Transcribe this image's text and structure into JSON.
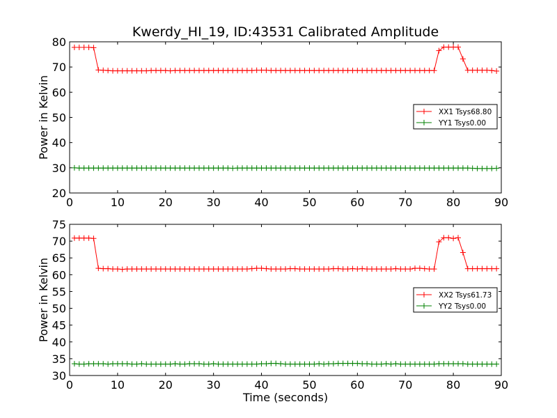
{
  "figure": {
    "title": "Kwerdy_HI_19, ID:43531 Calibrated Amplitude"
  },
  "chart_data": [
    {
      "type": "line",
      "title": "Kwerdy_HI_19, ID:43531 Calibrated Amplitude",
      "xlabel": "",
      "ylabel": "Power in Kelvin",
      "xlim": [
        0,
        90
      ],
      "ylim": [
        20,
        80
      ],
      "xticks": [
        "0",
        "10",
        "20",
        "30",
        "40",
        "50",
        "60",
        "70",
        "80",
        "90"
      ],
      "yticks": [
        "20",
        "30",
        "40",
        "50",
        "60",
        "70",
        "80"
      ],
      "grid": false,
      "legend_position": "center-right",
      "series": [
        {
          "name": "XX1 Tsys68.80",
          "color": "#ff0000",
          "marker": "plus",
          "x": [
            1,
            2,
            3,
            4,
            5,
            6,
            7,
            8,
            9,
            10,
            11,
            12,
            13,
            14,
            15,
            16,
            17,
            18,
            19,
            20,
            21,
            22,
            23,
            24,
            25,
            26,
            27,
            28,
            29,
            30,
            31,
            32,
            33,
            34,
            35,
            36,
            37,
            38,
            39,
            40,
            41,
            42,
            43,
            44,
            45,
            46,
            47,
            48,
            49,
            50,
            51,
            52,
            53,
            54,
            55,
            56,
            57,
            58,
            59,
            60,
            61,
            62,
            63,
            64,
            65,
            66,
            67,
            68,
            69,
            70,
            71,
            72,
            73,
            74,
            75,
            76,
            77,
            78,
            79,
            80,
            81,
            82,
            83,
            84,
            85,
            86,
            87,
            88,
            89
          ],
          "y": [
            77.8,
            77.8,
            77.8,
            77.8,
            77.7,
            68.8,
            68.7,
            68.6,
            68.5,
            68.5,
            68.5,
            68.5,
            68.5,
            68.5,
            68.5,
            68.5,
            68.6,
            68.6,
            68.6,
            68.6,
            68.5,
            68.6,
            68.6,
            68.6,
            68.6,
            68.6,
            68.6,
            68.6,
            68.6,
            68.6,
            68.6,
            68.6,
            68.6,
            68.6,
            68.6,
            68.6,
            68.6,
            68.6,
            68.7,
            68.7,
            68.7,
            68.6,
            68.6,
            68.6,
            68.6,
            68.6,
            68.6,
            68.6,
            68.6,
            68.6,
            68.6,
            68.6,
            68.6,
            68.6,
            68.6,
            68.6,
            68.6,
            68.6,
            68.6,
            68.6,
            68.6,
            68.6,
            68.6,
            68.6,
            68.6,
            68.6,
            68.6,
            68.6,
            68.6,
            68.6,
            68.6,
            68.6,
            68.6,
            68.6,
            68.6,
            68.6,
            76.5,
            77.9,
            77.9,
            77.9,
            77.9,
            73.2,
            68.7,
            68.7,
            68.7,
            68.7,
            68.7,
            68.6,
            68.4
          ]
        },
        {
          "name": "YY1 Tsys0.00",
          "color": "#008000",
          "marker": "plus",
          "x": [
            1,
            2,
            3,
            4,
            5,
            6,
            7,
            8,
            9,
            10,
            11,
            12,
            13,
            14,
            15,
            16,
            17,
            18,
            19,
            20,
            21,
            22,
            23,
            24,
            25,
            26,
            27,
            28,
            29,
            30,
            31,
            32,
            33,
            34,
            35,
            36,
            37,
            38,
            39,
            40,
            41,
            42,
            43,
            44,
            45,
            46,
            47,
            48,
            49,
            50,
            51,
            52,
            53,
            54,
            55,
            56,
            57,
            58,
            59,
            60,
            61,
            62,
            63,
            64,
            65,
            66,
            67,
            68,
            69,
            70,
            71,
            72,
            73,
            74,
            75,
            76,
            77,
            78,
            79,
            80,
            81,
            82,
            83,
            84,
            85,
            86,
            87,
            88,
            89
          ],
          "y": [
            30.0,
            29.9,
            29.9,
            29.9,
            29.9,
            29.9,
            29.9,
            29.9,
            29.9,
            29.9,
            29.9,
            29.9,
            29.9,
            29.9,
            29.9,
            29.9,
            29.9,
            29.9,
            29.9,
            29.9,
            29.9,
            29.9,
            29.9,
            29.9,
            29.9,
            29.9,
            29.9,
            29.9,
            29.9,
            29.9,
            29.9,
            29.9,
            29.9,
            29.8,
            29.9,
            29.9,
            29.9,
            29.9,
            29.9,
            29.9,
            29.9,
            29.9,
            29.9,
            29.9,
            29.9,
            29.9,
            29.9,
            29.9,
            29.9,
            29.9,
            29.9,
            29.9,
            29.9,
            29.9,
            29.9,
            29.9,
            29.9,
            29.9,
            29.9,
            29.9,
            29.9,
            29.9,
            29.9,
            29.9,
            29.9,
            29.9,
            29.9,
            29.9,
            29.9,
            29.9,
            29.9,
            29.9,
            29.9,
            29.9,
            29.9,
            29.9,
            29.9,
            29.9,
            29.9,
            29.9,
            29.9,
            29.9,
            29.9,
            29.8,
            29.7,
            29.7,
            29.7,
            29.7,
            29.8
          ]
        }
      ]
    },
    {
      "type": "line",
      "title": "",
      "xlabel": "Time (seconds)",
      "ylabel": "Power in Kelvin",
      "xlim": [
        0,
        90
      ],
      "ylim": [
        30,
        75
      ],
      "xticks": [
        "0",
        "10",
        "20",
        "30",
        "40",
        "50",
        "60",
        "70",
        "80",
        "90"
      ],
      "yticks": [
        "30",
        "35",
        "40",
        "45",
        "50",
        "55",
        "60",
        "65",
        "70",
        "75"
      ],
      "grid": false,
      "legend_position": "center-right",
      "series": [
        {
          "name": "XX2 Tsys61.73",
          "color": "#ff0000",
          "marker": "plus",
          "x": [
            1,
            2,
            3,
            4,
            5,
            6,
            7,
            8,
            9,
            10,
            11,
            12,
            13,
            14,
            15,
            16,
            17,
            18,
            19,
            20,
            21,
            22,
            23,
            24,
            25,
            26,
            27,
            28,
            29,
            30,
            31,
            32,
            33,
            34,
            35,
            36,
            37,
            38,
            39,
            40,
            41,
            42,
            43,
            44,
            45,
            46,
            47,
            48,
            49,
            50,
            51,
            52,
            53,
            54,
            55,
            56,
            57,
            58,
            59,
            60,
            61,
            62,
            63,
            64,
            65,
            66,
            67,
            68,
            69,
            70,
            71,
            72,
            73,
            74,
            75,
            76,
            77,
            78,
            79,
            80,
            81,
            82,
            83,
            84,
            85,
            86,
            87,
            88,
            89
          ],
          "y": [
            70.9,
            70.9,
            70.9,
            70.9,
            70.8,
            61.9,
            61.8,
            61.8,
            61.7,
            61.7,
            61.6,
            61.7,
            61.7,
            61.7,
            61.7,
            61.7,
            61.7,
            61.7,
            61.7,
            61.7,
            61.7,
            61.7,
            61.7,
            61.7,
            61.7,
            61.7,
            61.7,
            61.7,
            61.7,
            61.7,
            61.7,
            61.7,
            61.7,
            61.7,
            61.7,
            61.7,
            61.7,
            61.8,
            61.9,
            61.9,
            61.8,
            61.7,
            61.7,
            61.7,
            61.7,
            61.8,
            61.8,
            61.7,
            61.7,
            61.7,
            61.7,
            61.7,
            61.7,
            61.7,
            61.8,
            61.8,
            61.7,
            61.7,
            61.8,
            61.7,
            61.8,
            61.7,
            61.7,
            61.7,
            61.7,
            61.7,
            61.7,
            61.8,
            61.7,
            61.7,
            61.7,
            61.9,
            61.9,
            61.8,
            61.7,
            61.7,
            69.8,
            71.0,
            71.0,
            70.8,
            71.0,
            66.6,
            61.8,
            61.8,
            61.8,
            61.8,
            61.8,
            61.8,
            61.8
          ]
        },
        {
          "name": "YY2 Tsys0.00",
          "color": "#008000",
          "marker": "plus",
          "x": [
            1,
            2,
            3,
            4,
            5,
            6,
            7,
            8,
            9,
            10,
            11,
            12,
            13,
            14,
            15,
            16,
            17,
            18,
            19,
            20,
            21,
            22,
            23,
            24,
            25,
            26,
            27,
            28,
            29,
            30,
            31,
            32,
            33,
            34,
            35,
            36,
            37,
            38,
            39,
            40,
            41,
            42,
            43,
            44,
            45,
            46,
            47,
            48,
            49,
            50,
            51,
            52,
            53,
            54,
            55,
            56,
            57,
            58,
            59,
            60,
            61,
            62,
            63,
            64,
            65,
            66,
            67,
            68,
            69,
            70,
            71,
            72,
            73,
            74,
            75,
            76,
            77,
            78,
            79,
            80,
            81,
            82,
            83,
            84,
            85,
            86,
            87,
            88,
            89
          ],
          "y": [
            33.5,
            33.4,
            33.4,
            33.5,
            33.5,
            33.5,
            33.5,
            33.4,
            33.5,
            33.5,
            33.5,
            33.5,
            33.4,
            33.4,
            33.5,
            33.4,
            33.4,
            33.4,
            33.4,
            33.4,
            33.4,
            33.5,
            33.4,
            33.4,
            33.5,
            33.5,
            33.5,
            33.4,
            33.4,
            33.5,
            33.4,
            33.4,
            33.4,
            33.4,
            33.4,
            33.4,
            33.4,
            33.4,
            33.4,
            33.5,
            33.5,
            33.6,
            33.6,
            33.5,
            33.4,
            33.4,
            33.4,
            33.4,
            33.4,
            33.4,
            33.4,
            33.5,
            33.4,
            33.5,
            33.5,
            33.6,
            33.6,
            33.6,
            33.6,
            33.6,
            33.5,
            33.5,
            33.4,
            33.4,
            33.4,
            33.5,
            33.4,
            33.5,
            33.4,
            33.4,
            33.4,
            33.4,
            33.4,
            33.4,
            33.4,
            33.4,
            33.5,
            33.5,
            33.5,
            33.5,
            33.5,
            33.5,
            33.4,
            33.4,
            33.4,
            33.4,
            33.4,
            33.4,
            33.4
          ]
        }
      ]
    }
  ]
}
